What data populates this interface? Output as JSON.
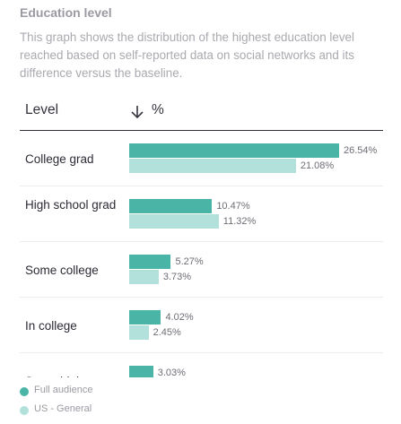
{
  "header": {
    "title": "Education level",
    "description": "This graph shows the distribution of the highest education level reached based on self-reported data on social networks and its difference versus the baseline."
  },
  "table": {
    "col_level": "Level",
    "col_pct": "%",
    "sort_icon": "arrow-down-icon"
  },
  "colors": {
    "full_audience": "#4ab5a7",
    "us_general": "#b2e1dc"
  },
  "chart_data": {
    "type": "bar",
    "orientation": "horizontal",
    "categories": [
      "College grad",
      "High school grad",
      "Some college",
      "In college",
      "Some high"
    ],
    "series": [
      {
        "name": "Full audience",
        "values": [
          26.54,
          10.47,
          5.27,
          4.02,
          3.03
        ],
        "labels": [
          "26.54%",
          "10.47%",
          "5.27%",
          "4.02%",
          "3.03%"
        ]
      },
      {
        "name": "US - General",
        "values": [
          21.08,
          11.32,
          3.73,
          2.45,
          null
        ],
        "labels": [
          "21.08%",
          "11.32%",
          "3.73%",
          "2.45%",
          ""
        ]
      }
    ],
    "legend_position": "bottom-left",
    "grid": false
  }
}
